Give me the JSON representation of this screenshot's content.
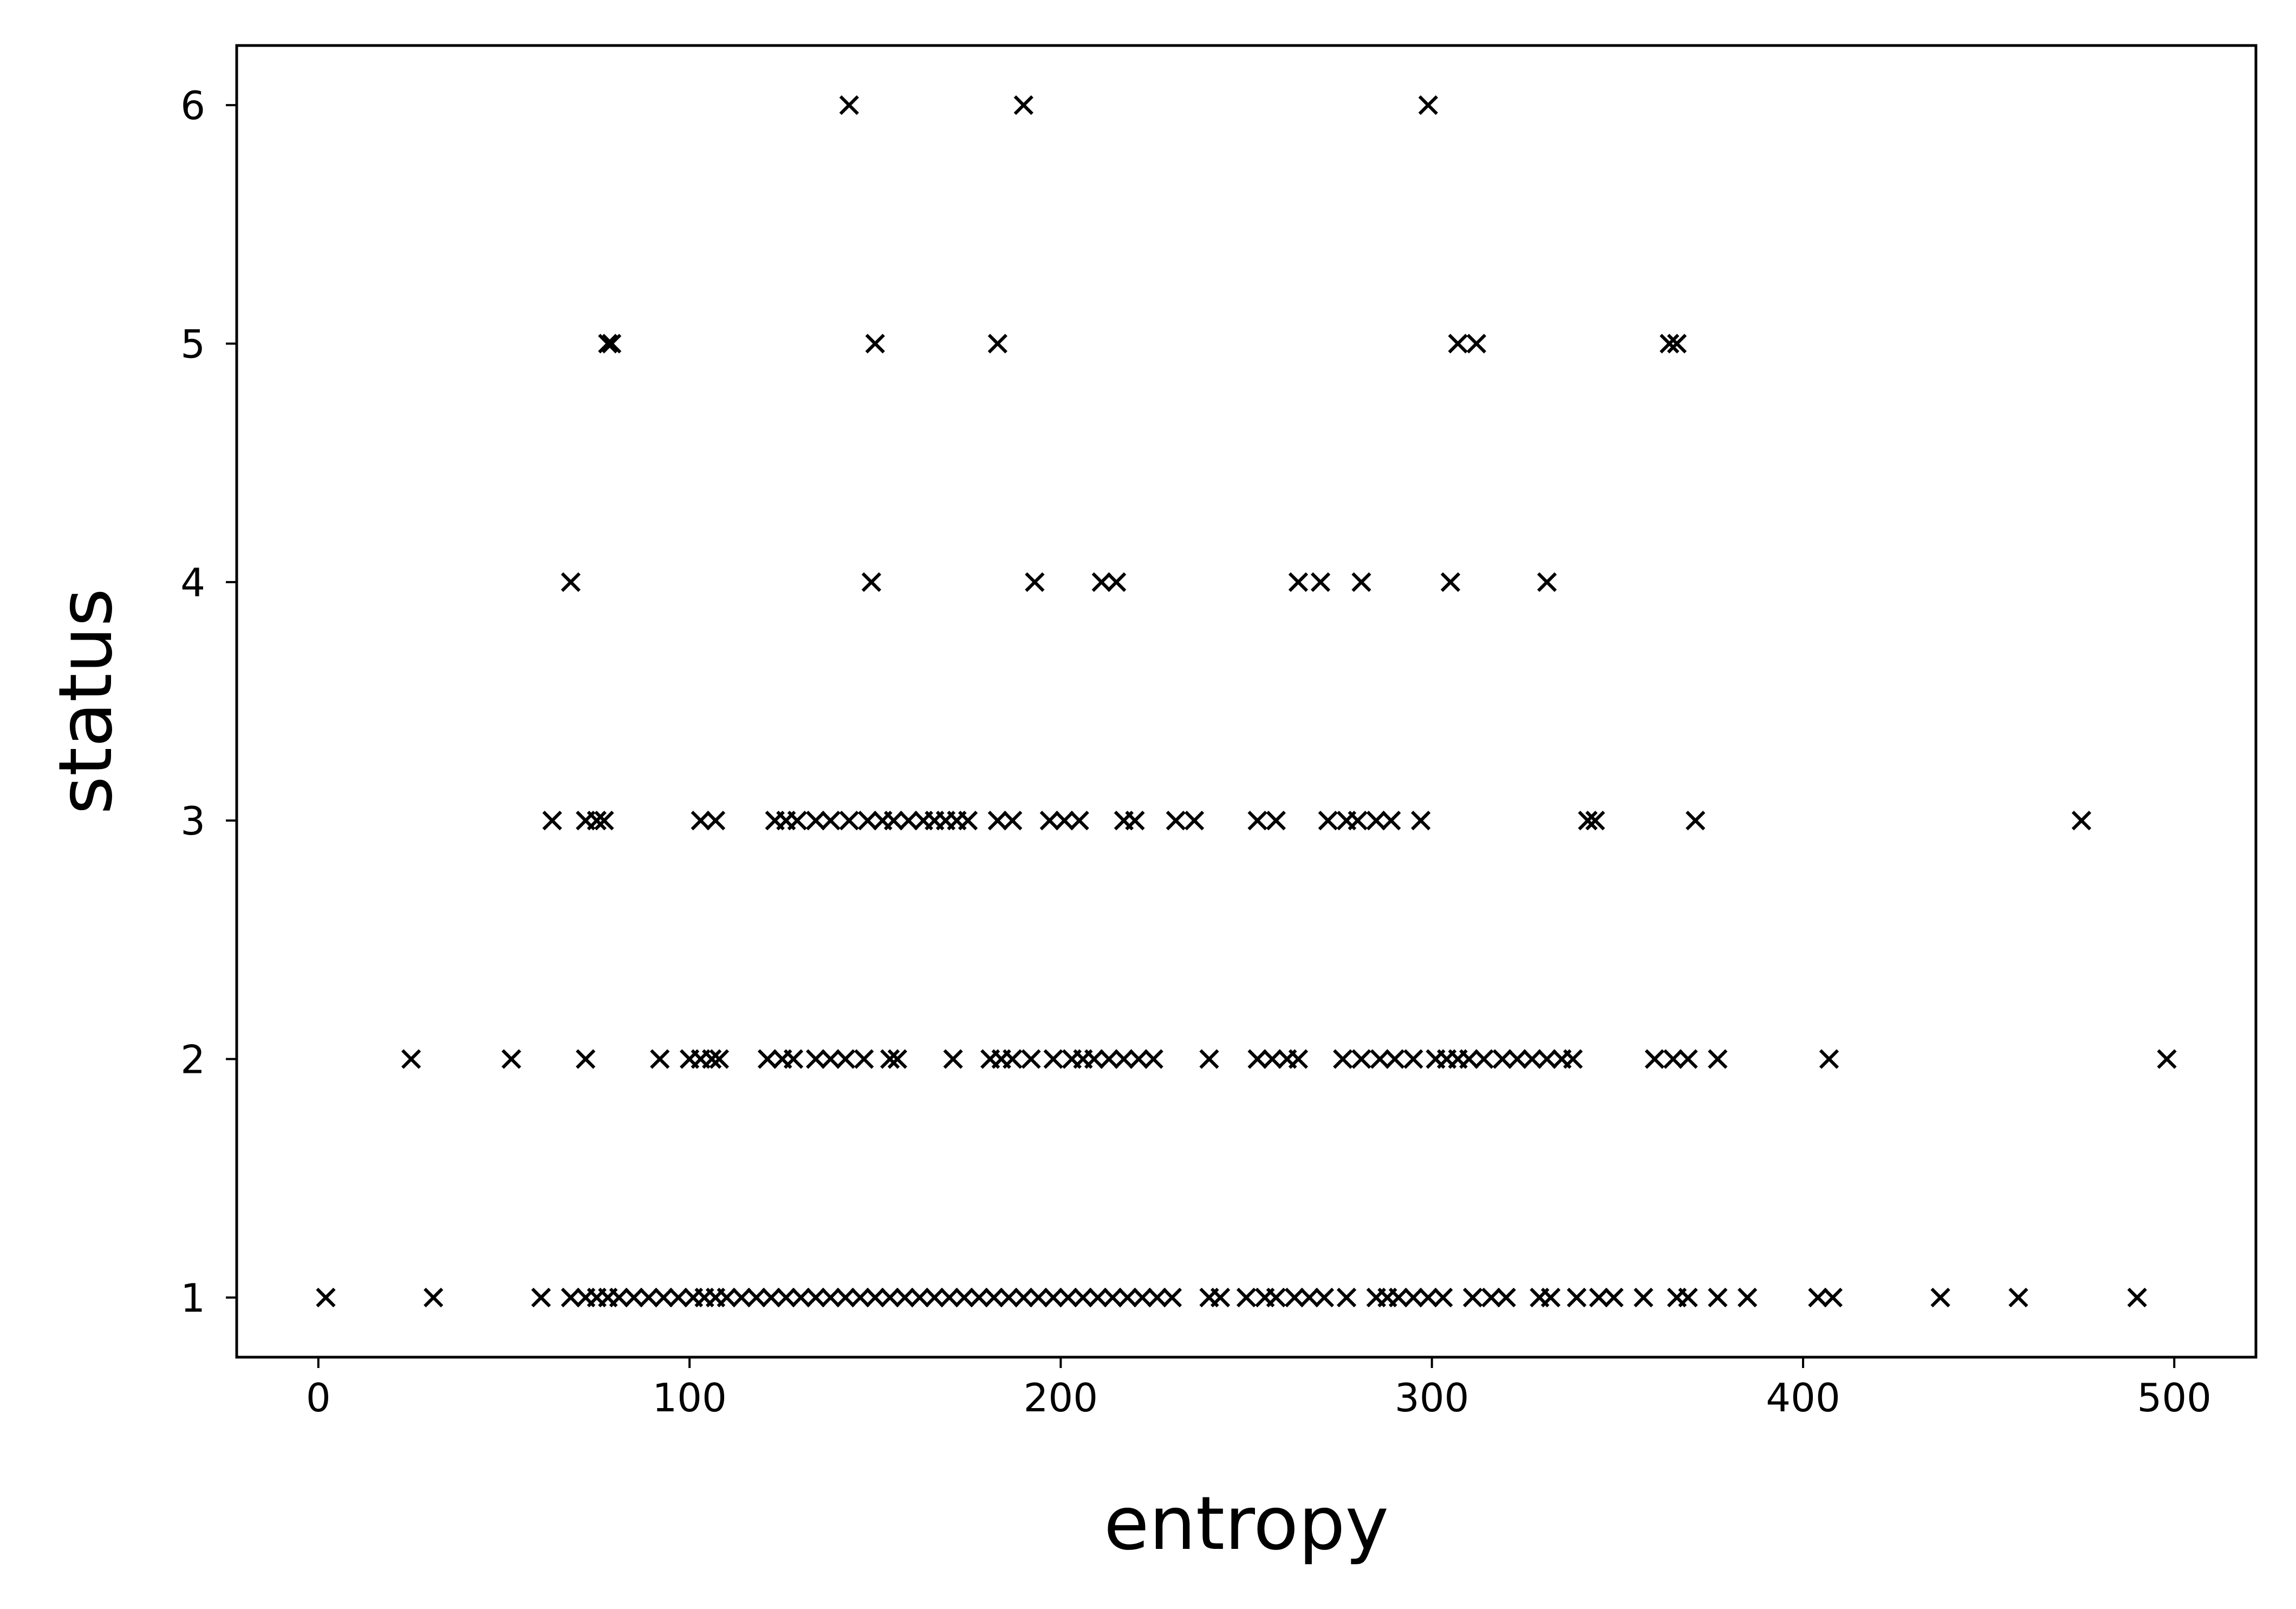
{
  "chart_data": {
    "type": "scatter",
    "title": "",
    "xlabel": "entropy",
    "ylabel": "status",
    "xlim": [
      -22,
      522
    ],
    "ylim": [
      0.75,
      6.25
    ],
    "xticks": [
      0,
      100,
      200,
      300,
      400,
      500
    ],
    "yticks": [
      1,
      2,
      3,
      4,
      5,
      6
    ],
    "grid": false,
    "legend": "none",
    "marker": "x",
    "marker_color": "#000000",
    "series": [
      {
        "points": [
          [
            143,
            6
          ],
          [
            190,
            6
          ],
          [
            299,
            6
          ],
          [
            78,
            5
          ],
          [
            79,
            5
          ],
          [
            150,
            5
          ],
          [
            183,
            5
          ],
          [
            307,
            5
          ],
          [
            312,
            5
          ],
          [
            364,
            5
          ],
          [
            366,
            5
          ],
          [
            68,
            4
          ],
          [
            149,
            4
          ],
          [
            193,
            4
          ],
          [
            211,
            4
          ],
          [
            215,
            4
          ],
          [
            264,
            4
          ],
          [
            270,
            4
          ],
          [
            281,
            4
          ],
          [
            305,
            4
          ],
          [
            331,
            4
          ],
          [
            63,
            3
          ],
          [
            72,
            3
          ],
          [
            75,
            3
          ],
          [
            77,
            3
          ],
          [
            103,
            3
          ],
          [
            107,
            3
          ],
          [
            123,
            3
          ],
          [
            126,
            3
          ],
          [
            129,
            3
          ],
          [
            134,
            3
          ],
          [
            138,
            3
          ],
          [
            143,
            3
          ],
          [
            148,
            3
          ],
          [
            152,
            3
          ],
          [
            155,
            3
          ],
          [
            159,
            3
          ],
          [
            163,
            3
          ],
          [
            166,
            3
          ],
          [
            169,
            3
          ],
          [
            172,
            3
          ],
          [
            175,
            3
          ],
          [
            183,
            3
          ],
          [
            187,
            3
          ],
          [
            197,
            3
          ],
          [
            201,
            3
          ],
          [
            205,
            3
          ],
          [
            217,
            3
          ],
          [
            220,
            3
          ],
          [
            231,
            3
          ],
          [
            236,
            3
          ],
          [
            253,
            3
          ],
          [
            258,
            3
          ],
          [
            272,
            3
          ],
          [
            277,
            3
          ],
          [
            280,
            3
          ],
          [
            285,
            3
          ],
          [
            289,
            3
          ],
          [
            297,
            3
          ],
          [
            342,
            3
          ],
          [
            344,
            3
          ],
          [
            371,
            3
          ],
          [
            475,
            3
          ],
          [
            25,
            2
          ],
          [
            52,
            2
          ],
          [
            72,
            2
          ],
          [
            92,
            2
          ],
          [
            100,
            2
          ],
          [
            103,
            2
          ],
          [
            106,
            2
          ],
          [
            108,
            2
          ],
          [
            121,
            2
          ],
          [
            125,
            2
          ],
          [
            128,
            2
          ],
          [
            134,
            2
          ],
          [
            138,
            2
          ],
          [
            142,
            2
          ],
          [
            147,
            2
          ],
          [
            154,
            2
          ],
          [
            156,
            2
          ],
          [
            171,
            2
          ],
          [
            181,
            2
          ],
          [
            184,
            2
          ],
          [
            187,
            2
          ],
          [
            192,
            2
          ],
          [
            198,
            2
          ],
          [
            203,
            2
          ],
          [
            206,
            2
          ],
          [
            209,
            2
          ],
          [
            213,
            2
          ],
          [
            217,
            2
          ],
          [
            221,
            2
          ],
          [
            225,
            2
          ],
          [
            240,
            2
          ],
          [
            253,
            2
          ],
          [
            257,
            2
          ],
          [
            261,
            2
          ],
          [
            264,
            2
          ],
          [
            276,
            2
          ],
          [
            281,
            2
          ],
          [
            286,
            2
          ],
          [
            290,
            2
          ],
          [
            295,
            2
          ],
          [
            301,
            2
          ],
          [
            304,
            2
          ],
          [
            307,
            2
          ],
          [
            310,
            2
          ],
          [
            314,
            2
          ],
          [
            319,
            2
          ],
          [
            323,
            2
          ],
          [
            327,
            2
          ],
          [
            331,
            2
          ],
          [
            335,
            2
          ],
          [
            338,
            2
          ],
          [
            360,
            2
          ],
          [
            365,
            2
          ],
          [
            369,
            2
          ],
          [
            377,
            2
          ],
          [
            407,
            2
          ],
          [
            498,
            2
          ],
          [
            2,
            1
          ],
          [
            31,
            1
          ],
          [
            60,
            1
          ],
          [
            68,
            1
          ],
          [
            72,
            1
          ],
          [
            75,
            1
          ],
          [
            78,
            1
          ],
          [
            81,
            1
          ],
          [
            85,
            1
          ],
          [
            89,
            1
          ],
          [
            93,
            1
          ],
          [
            97,
            1
          ],
          [
            101,
            1
          ],
          [
            104,
            1
          ],
          [
            107,
            1
          ],
          [
            110,
            1
          ],
          [
            114,
            1
          ],
          [
            118,
            1
          ],
          [
            122,
            1
          ],
          [
            126,
            1
          ],
          [
            130,
            1
          ],
          [
            134,
            1
          ],
          [
            138,
            1
          ],
          [
            142,
            1
          ],
          [
            146,
            1
          ],
          [
            150,
            1
          ],
          [
            154,
            1
          ],
          [
            158,
            1
          ],
          [
            162,
            1
          ],
          [
            166,
            1
          ],
          [
            170,
            1
          ],
          [
            174,
            1
          ],
          [
            178,
            1
          ],
          [
            182,
            1
          ],
          [
            186,
            1
          ],
          [
            190,
            1
          ],
          [
            194,
            1
          ],
          [
            198,
            1
          ],
          [
            202,
            1
          ],
          [
            206,
            1
          ],
          [
            210,
            1
          ],
          [
            214,
            1
          ],
          [
            218,
            1
          ],
          [
            222,
            1
          ],
          [
            226,
            1
          ],
          [
            230,
            1
          ],
          [
            240,
            1
          ],
          [
            243,
            1
          ],
          [
            250,
            1
          ],
          [
            255,
            1
          ],
          [
            258,
            1
          ],
          [
            263,
            1
          ],
          [
            267,
            1
          ],
          [
            271,
            1
          ],
          [
            277,
            1
          ],
          [
            285,
            1
          ],
          [
            288,
            1
          ],
          [
            291,
            1
          ],
          [
            295,
            1
          ],
          [
            299,
            1
          ],
          [
            303,
            1
          ],
          [
            311,
            1
          ],
          [
            316,
            1
          ],
          [
            320,
            1
          ],
          [
            329,
            1
          ],
          [
            332,
            1
          ],
          [
            339,
            1
          ],
          [
            345,
            1
          ],
          [
            349,
            1
          ],
          [
            357,
            1
          ],
          [
            366,
            1
          ],
          [
            369,
            1
          ],
          [
            377,
            1
          ],
          [
            385,
            1
          ],
          [
            404,
            1
          ],
          [
            408,
            1
          ],
          [
            437,
            1
          ],
          [
            458,
            1
          ],
          [
            490,
            1
          ]
        ]
      }
    ]
  }
}
